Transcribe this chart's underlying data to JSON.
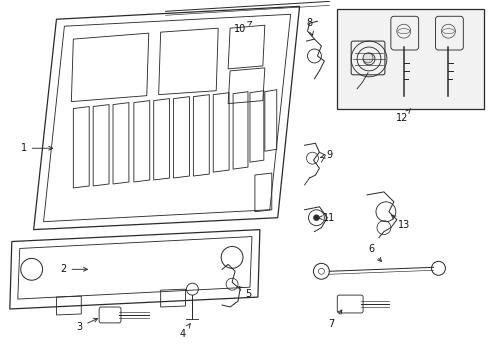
{
  "bg_color": "#ffffff",
  "line_color": "#2a2a2a",
  "lw": 0.9,
  "fig_width": 4.89,
  "fig_height": 3.6,
  "dpi": 100
}
